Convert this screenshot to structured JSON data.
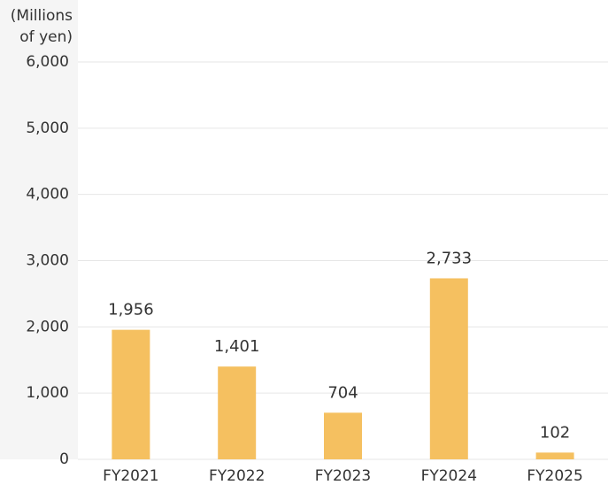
{
  "chart_data": {
    "type": "bar",
    "y_axis_label": [
      "(Millions",
      "of yen)"
    ],
    "categories": [
      "FY2021",
      "FY2022",
      "FY2023",
      "FY2024",
      "FY2025"
    ],
    "values": [
      1956,
      1401,
      704,
      2733,
      102
    ],
    "value_labels": [
      "1,956",
      "1,401",
      "704",
      "2,733",
      "102"
    ],
    "color": "#f5c060",
    "ylim": [
      0,
      6000
    ],
    "yticks": [
      0,
      {
        "value": 1000,
        "label": "1,000"
      },
      {
        "value": 2000,
        "label": "2,000"
      },
      {
        "value": 3000,
        "label": "3,000"
      },
      {
        "value": 4000,
        "label": "4,000"
      },
      {
        "value": 5000,
        "label": "5,000"
      },
      {
        "value": 6000,
        "label": "6,000"
      }
    ],
    "grid": true
  }
}
